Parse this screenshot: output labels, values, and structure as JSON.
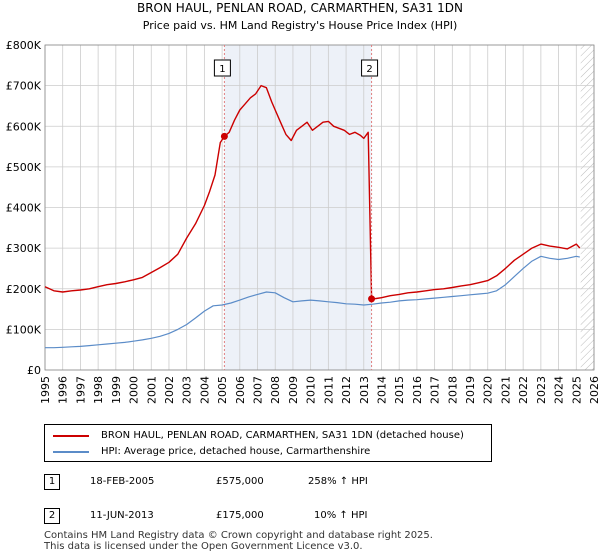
{
  "chart_data": {
    "type": "line",
    "title": "BRON HAUL, PENLAN ROAD, CARMARTHEN, SA31 1DN",
    "subtitle": "Price paid vs. HM Land Registry's House Price Index (HPI)",
    "xlim": [
      1995,
      2026
    ],
    "ylim": [
      0,
      800000
    ],
    "x_ticks": [
      1995,
      1996,
      1997,
      1998,
      1999,
      2000,
      2001,
      2002,
      2003,
      2004,
      2005,
      2006,
      2007,
      2008,
      2009,
      2010,
      2011,
      2012,
      2013,
      2014,
      2015,
      2016,
      2017,
      2018,
      2019,
      2020,
      2021,
      2022,
      2023,
      2024,
      2025,
      2026
    ],
    "y_ticks": [
      {
        "value": 0,
        "label": "£0"
      },
      {
        "value": 100000,
        "label": "£100K"
      },
      {
        "value": 200000,
        "label": "£200K"
      },
      {
        "value": 300000,
        "label": "£300K"
      },
      {
        "value": 400000,
        "label": "£400K"
      },
      {
        "value": 500000,
        "label": "£500K"
      },
      {
        "value": 600000,
        "label": "£600K"
      },
      {
        "value": 700000,
        "label": "£700K"
      },
      {
        "value": 800000,
        "label": "£800K"
      }
    ],
    "series": [
      {
        "name": "BRON HAUL, PENLAN ROAD, CARMARTHEN, SA31 1DN (detached house)",
        "color": "#cc0000",
        "x": [
          1995.0,
          1995.5,
          1996.0,
          1996.5,
          1997.0,
          1997.5,
          1998.0,
          1998.5,
          1999.0,
          1999.5,
          2000.0,
          2000.5,
          2001.0,
          2001.5,
          2002.0,
          2002.5,
          2003.0,
          2003.5,
          2004.0,
          2004.3,
          2004.6,
          2004.9,
          2005.13,
          2005.4,
          2005.7,
          2006.0,
          2006.3,
          2006.6,
          2006.9,
          2007.2,
          2007.5,
          2007.8,
          2008.0,
          2008.3,
          2008.6,
          2008.9,
          2009.2,
          2009.5,
          2009.8,
          2010.1,
          2010.4,
          2010.7,
          2011.0,
          2011.3,
          2011.6,
          2011.9,
          2012.2,
          2012.5,
          2012.8,
          2013.0,
          2013.25,
          2013.44,
          2013.7,
          2014.0,
          2014.5,
          2015.0,
          2015.5,
          2016.0,
          2016.5,
          2017.0,
          2017.5,
          2018.0,
          2018.5,
          2019.0,
          2019.5,
          2020.0,
          2020.5,
          2021.0,
          2021.5,
          2022.0,
          2022.5,
          2023.0,
          2023.5,
          2024.0,
          2024.5,
          2025.0,
          2025.2
        ],
        "values": [
          205000,
          195000,
          192000,
          195000,
          197000,
          200000,
          205000,
          210000,
          213000,
          217000,
          222000,
          228000,
          240000,
          252000,
          265000,
          285000,
          325000,
          360000,
          405000,
          440000,
          480000,
          560000,
          575000,
          585000,
          615000,
          640000,
          655000,
          670000,
          680000,
          700000,
          695000,
          660000,
          640000,
          610000,
          580000,
          565000,
          590000,
          600000,
          610000,
          590000,
          600000,
          610000,
          612000,
          600000,
          595000,
          590000,
          580000,
          585000,
          578000,
          570000,
          585000,
          175000,
          176000,
          178000,
          183000,
          186000,
          190000,
          192000,
          195000,
          198000,
          200000,
          203000,
          207000,
          210000,
          215000,
          220000,
          232000,
          250000,
          270000,
          285000,
          300000,
          310000,
          305000,
          302000,
          298000,
          310000,
          300000
        ]
      },
      {
        "name": "HPI: Average price, detached house, Carmarthenshire",
        "color": "#5b8cc8",
        "x": [
          1995.0,
          1995.5,
          1996.0,
          1996.5,
          1997.0,
          1997.5,
          1998.0,
          1998.5,
          1999.0,
          1999.5,
          2000.0,
          2000.5,
          2001.0,
          2001.5,
          2002.0,
          2002.5,
          2003.0,
          2003.5,
          2004.0,
          2004.5,
          2005.0,
          2005.5,
          2006.0,
          2006.5,
          2007.0,
          2007.5,
          2008.0,
          2008.5,
          2009.0,
          2009.5,
          2010.0,
          2010.5,
          2011.0,
          2011.5,
          2012.0,
          2012.5,
          2013.0,
          2013.5,
          2014.0,
          2014.5,
          2015.0,
          2015.5,
          2016.0,
          2016.5,
          2017.0,
          2017.5,
          2018.0,
          2018.5,
          2019.0,
          2019.5,
          2020.0,
          2020.5,
          2021.0,
          2021.5,
          2022.0,
          2022.5,
          2023.0,
          2023.5,
          2024.0,
          2024.5,
          2025.0,
          2025.2
        ],
        "values": [
          55000,
          55000,
          56000,
          57000,
          58000,
          60000,
          62000,
          64000,
          66000,
          68000,
          71000,
          74000,
          78000,
          83000,
          90000,
          100000,
          112000,
          128000,
          145000,
          158000,
          160000,
          165000,
          172000,
          180000,
          186000,
          192000,
          190000,
          178000,
          168000,
          170000,
          172000,
          170000,
          168000,
          166000,
          163000,
          162000,
          160000,
          162000,
          165000,
          167000,
          170000,
          172000,
          173000,
          175000,
          177000,
          179000,
          181000,
          183000,
          185000,
          187000,
          189000,
          195000,
          210000,
          230000,
          250000,
          268000,
          280000,
          275000,
          272000,
          275000,
          280000,
          278000
        ]
      }
    ],
    "vertical_markers": [
      {
        "x": 2005.13,
        "label": "1"
      },
      {
        "x": 2013.44,
        "label": "2"
      }
    ],
    "sale_points": [
      {
        "x": 2005.13,
        "value": 575000
      },
      {
        "x": 2013.44,
        "value": 175000
      }
    ],
    "forecast_start": 2025.25
  },
  "legend": {
    "items": [
      {
        "label": "BRON HAUL, PENLAN ROAD, CARMARTHEN, SA31 1DN (detached house)",
        "color": "#cc0000"
      },
      {
        "label": "HPI: Average price, detached house, Carmarthenshire",
        "color": "#5b8cc8"
      }
    ]
  },
  "sales": [
    {
      "number": "1",
      "date": "18-FEB-2005",
      "price": "£575,000",
      "hpi_change": "258% ↑ HPI"
    },
    {
      "number": "2",
      "date": "11-JUN-2013",
      "price": "£175,000",
      "hpi_change": "10% ↑ HPI"
    }
  ],
  "footer": {
    "line1": "Contains HM Land Registry data © Crown copyright and database right 2025.",
    "line2": "This data is licensed under the Open Government Licence v3.0."
  }
}
